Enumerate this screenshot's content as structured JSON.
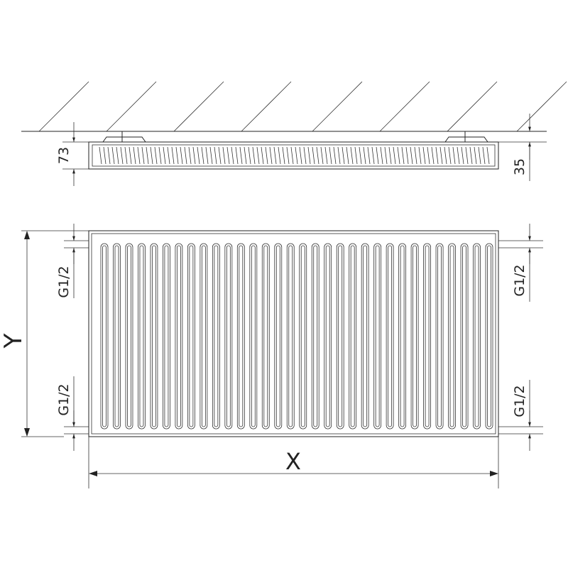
{
  "drawing": {
    "top_view": {
      "depth_label": "73",
      "wall_offset_label": "35"
    },
    "front_view": {
      "height_label": "Y",
      "width_label": "X",
      "connection_labels": [
        "G1/2",
        "G1/2",
        "G1/2",
        "G1/2"
      ],
      "flute_count": 32
    },
    "line_color": "#222222"
  }
}
